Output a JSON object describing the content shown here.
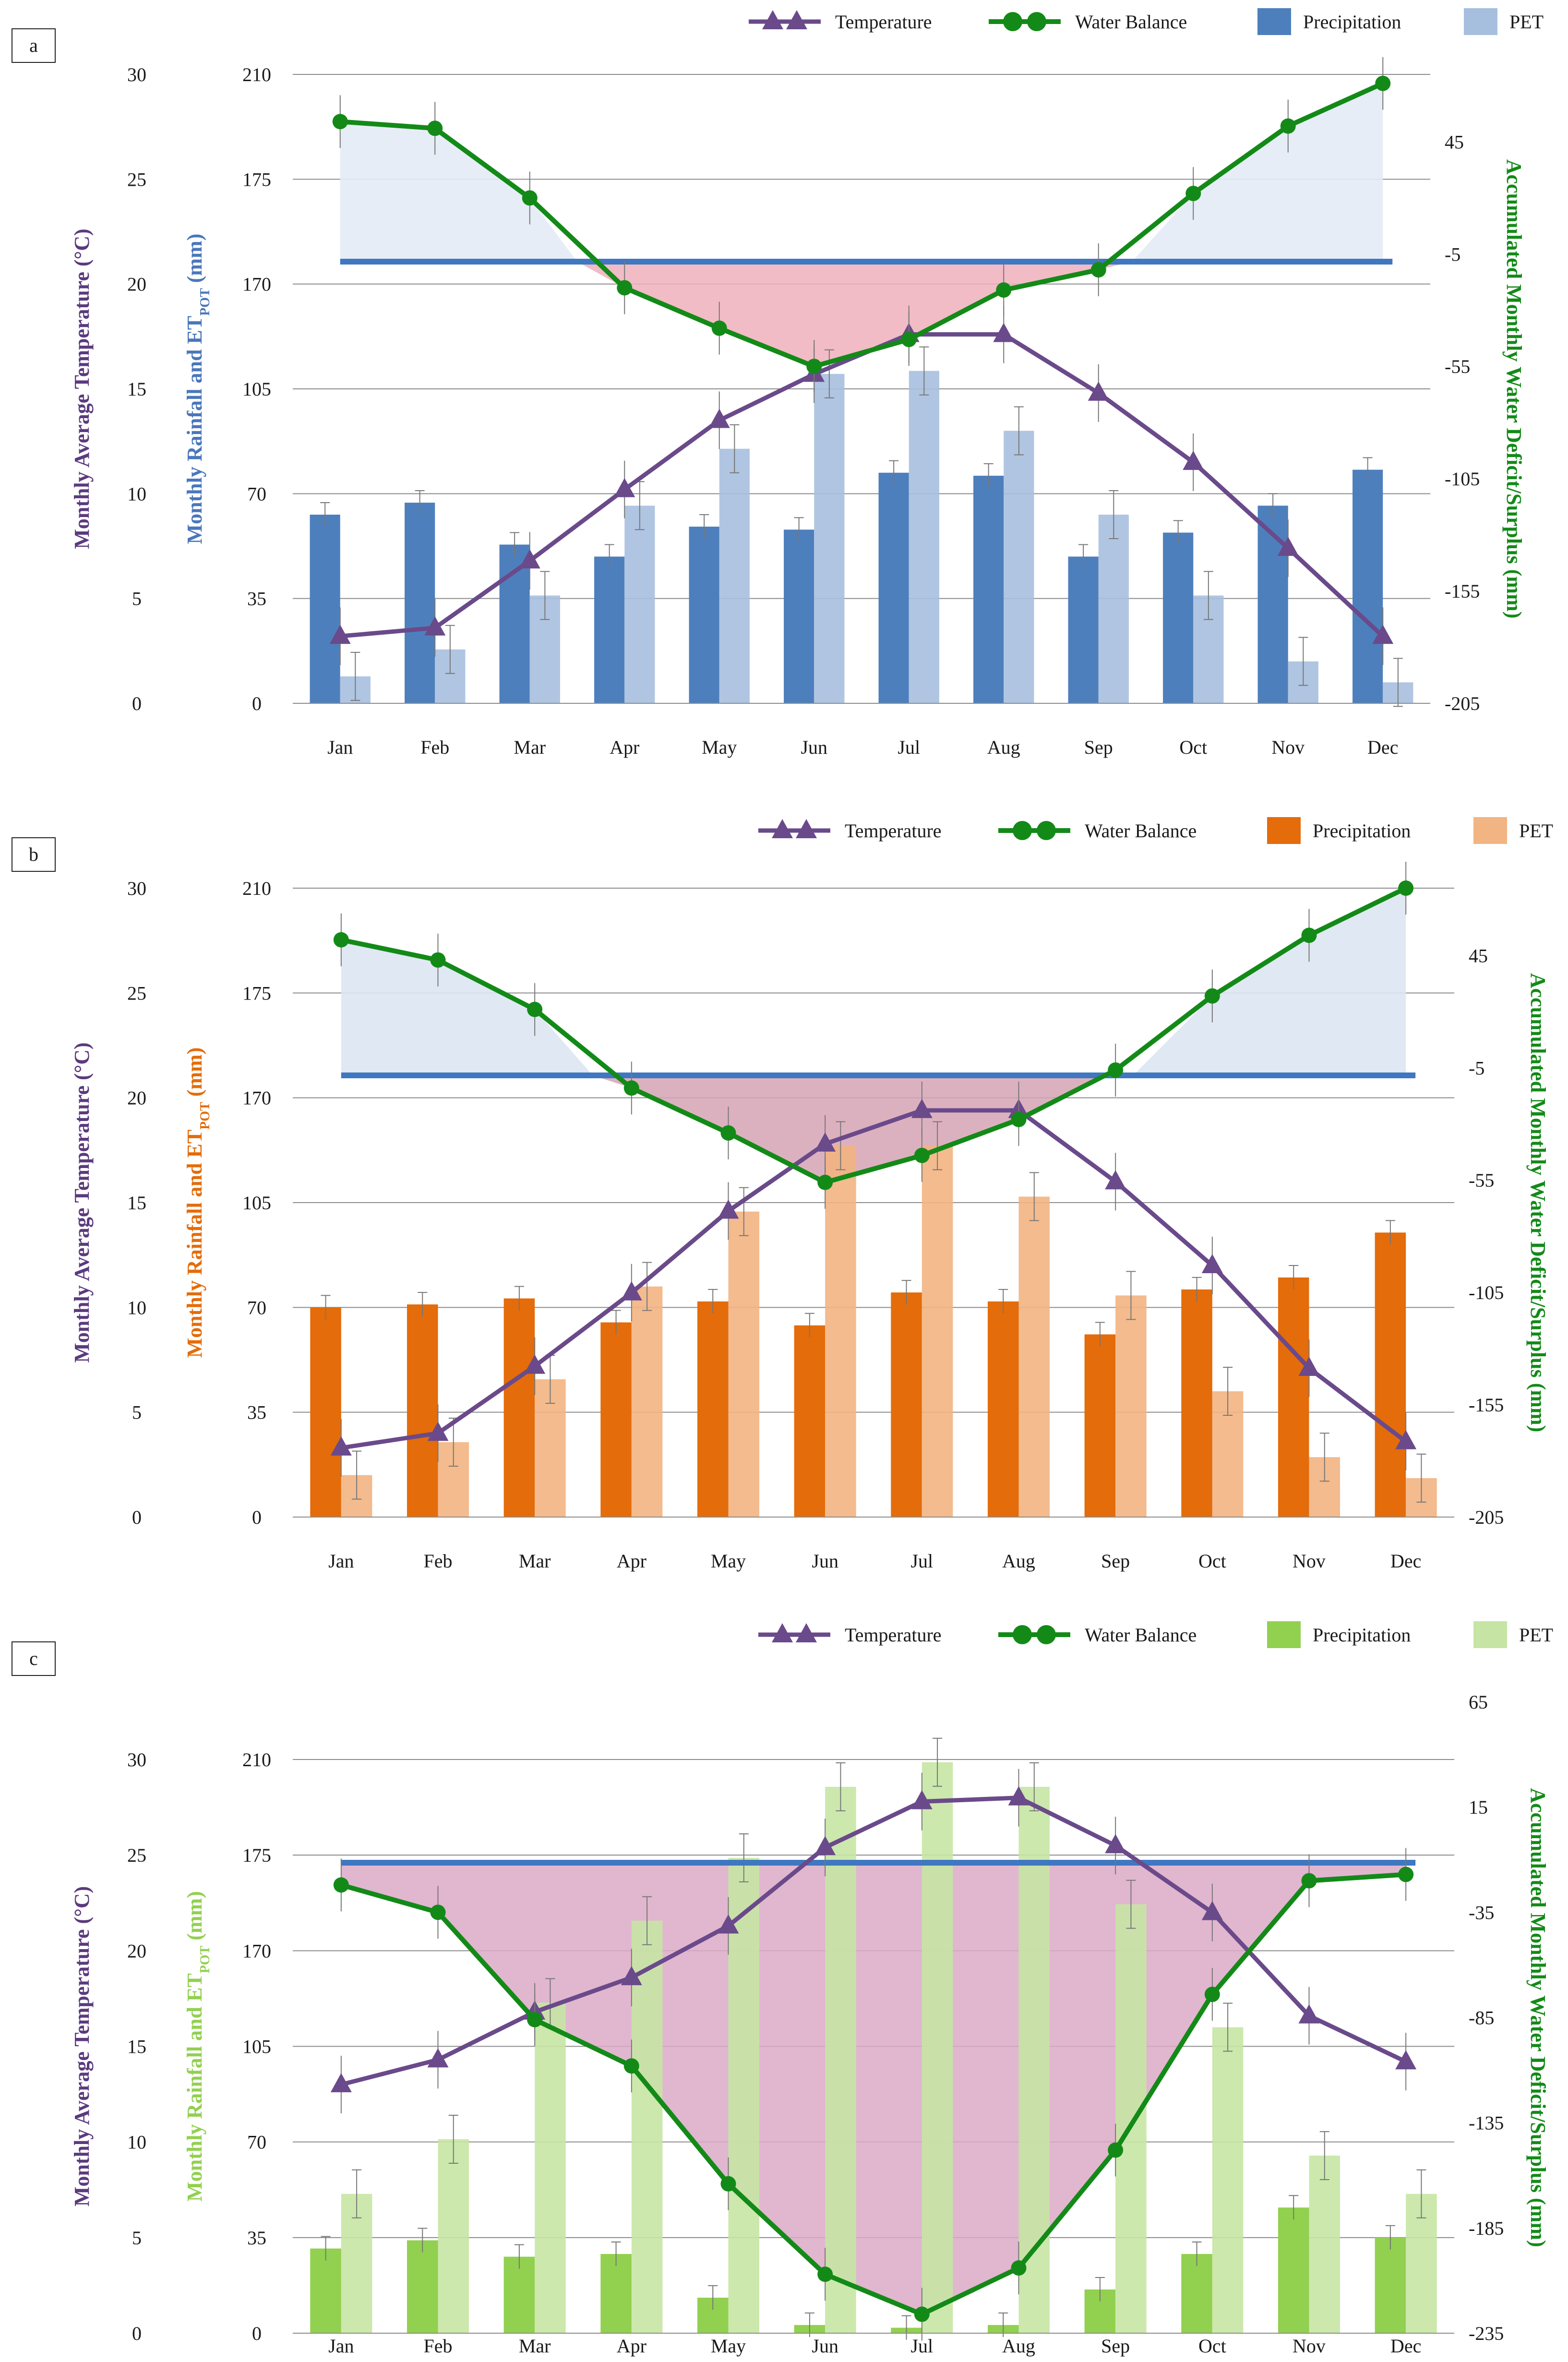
{
  "chart_data": [
    {
      "type": "bar",
      "panel_label": "a",
      "categories": [
        "Jan",
        "Feb",
        "Mar",
        "Apr",
        "May",
        "Jun",
        "Jul",
        "Aug",
        "Sep",
        "Oct",
        "Nov",
        "Dec"
      ],
      "legend": [
        "Temperature",
        "Water Balance",
        "Precipitation",
        "PET"
      ],
      "left_temp_axis": {
        "label": "Monthly Average Temperature (°C)",
        "range": [
          0,
          30
        ],
        "ticks": [
          "0",
          "5",
          "10",
          "15",
          "20",
          "25",
          "30"
        ]
      },
      "left_rain_axis": {
        "label_main": "Monthly Rainfall and ET",
        "label_sub": "POT",
        "label_unit": " (mm)",
        "range": [
          0,
          210
        ],
        "ticks": [
          "0",
          "35",
          "70",
          "105",
          "170",
          "175",
          "210"
        ]
      },
      "right_axis": {
        "label": "Accumulated Monthly Water Deficit/Surplus (mm)",
        "range": [
          -205,
          75
        ],
        "ticks": [
          "-205",
          "-155",
          "-105",
          "-55",
          "-5",
          "45"
        ]
      },
      "series": [
        {
          "name": "Precipitation",
          "axis": "rain",
          "values": [
            63,
            67,
            53,
            49,
            59,
            58,
            77,
            76,
            49,
            57,
            66,
            78
          ]
        },
        {
          "name": "PET",
          "axis": "rain",
          "values": [
            9,
            18,
            36,
            66,
            85,
            110,
            111,
            91,
            63,
            36,
            14,
            7
          ]
        },
        {
          "name": "Temperature",
          "axis": "temp",
          "values": [
            3.2,
            3.6,
            6.8,
            10.2,
            13.5,
            15.7,
            17.6,
            17.6,
            14.8,
            11.5,
            7.4,
            3.2
          ]
        },
        {
          "name": "Water Balance",
          "axis": "wb",
          "values": [
            54,
            51,
            20,
            -20,
            -38,
            -55,
            -43,
            -21,
            -12,
            22,
            52,
            71
          ]
        }
      ],
      "colors": {
        "precipitation": "#4e7fbd",
        "pet": "#a7bfde",
        "temperature": "#6a4a8a",
        "water_balance": "#138a18",
        "surplus_fill": "#e4ebf5",
        "deficit_fill": "#eeb0bb",
        "zero_line": "#3f77c0",
        "rain_label": "#4a77bb"
      }
    },
    {
      "type": "bar",
      "panel_label": "b",
      "categories": [
        "Jan",
        "Feb",
        "Mar",
        "Apr",
        "May",
        "Jun",
        "Jul",
        "Aug",
        "Sep",
        "Oct",
        "Nov",
        "Dec"
      ],
      "legend": [
        "Temperature",
        "Water Balance",
        "Precipitation",
        "PET"
      ],
      "left_temp_axis": {
        "label": "Monthly Average Temperature (°C)",
        "range": [
          0,
          30
        ],
        "ticks": [
          "0",
          "5",
          "10",
          "15",
          "20",
          "25",
          "30"
        ]
      },
      "left_rain_axis": {
        "label_main": "Monthly Rainfall and ET",
        "label_sub": "POT",
        "label_unit": " (mm)",
        "range": [
          0,
          210
        ],
        "ticks": [
          "0",
          "35",
          "70",
          "105",
          "170",
          "175",
          "210"
        ]
      },
      "right_axis": {
        "label": "Accumulated Monthly Water Deficit/Surplus (mm)",
        "range": [
          -205,
          75
        ],
        "ticks": [
          "-205",
          "-155",
          "-105",
          "-55",
          "-5",
          "45"
        ]
      },
      "series": [
        {
          "name": "Precipitation",
          "axis": "rain",
          "values": [
            70,
            71,
            73,
            65,
            72,
            64,
            75,
            72,
            61,
            76,
            80,
            95
          ]
        },
        {
          "name": "PET",
          "axis": "rain",
          "values": [
            14,
            25,
            46,
            77,
            102,
            124,
            124,
            107,
            74,
            42,
            20,
            13
          ]
        },
        {
          "name": "Temperature",
          "axis": "temp",
          "values": [
            3.3,
            4.0,
            7.2,
            10.7,
            14.6,
            17.8,
            19.4,
            19.4,
            16.0,
            12.0,
            7.1,
            3.6
          ]
        },
        {
          "name": "Water Balance",
          "axis": "wb",
          "values": [
            52,
            43,
            21,
            -14,
            -34,
            -56,
            -44,
            -28,
            -6,
            27,
            54,
            75
          ]
        }
      ],
      "colors": {
        "precipitation": "#e46c0a",
        "pet": "#f2b482",
        "temperature": "#6a4a8a",
        "water_balance": "#138a18",
        "surplus_fill": "#dde6f2",
        "deficit_fill": "#d6a3b4",
        "zero_line": "#3f77c0",
        "rain_label": "#e46c0a"
      }
    },
    {
      "type": "bar",
      "panel_label": "c",
      "categories": [
        "Jan",
        "Feb",
        "Mar",
        "Apr",
        "May",
        "Jun",
        "Jul",
        "Aug",
        "Sep",
        "Oct",
        "Nov",
        "Dec"
      ],
      "legend": [
        "Temperature",
        "Water Balance",
        "Precipitation",
        "PET"
      ],
      "left_temp_axis": {
        "label": "Monthly Average Temperature (°C)",
        "range": [
          0,
          30
        ],
        "ticks": [
          "0",
          "5",
          "10",
          "15",
          "20",
          "25",
          "30"
        ]
      },
      "left_rain_axis": {
        "label_main": "Monthly Rainfall and ET",
        "label_sub": "POT",
        "label_unit": " (mm)",
        "range": [
          0,
          210
        ],
        "ticks": [
          "0",
          "35",
          "70",
          "105",
          "170",
          "175",
          "210"
        ]
      },
      "right_axis": {
        "label": "Accumulated Monthly Water Deficit/Surplus (mm)",
        "range": [
          -235,
          65
        ],
        "ticks": [
          "-235",
          "-185",
          "-135",
          "-85",
          "-35",
          "15",
          "65"
        ]
      },
      "series": [
        {
          "name": "Precipitation",
          "axis": "rain",
          "values": [
            31,
            34,
            28,
            29,
            13,
            3,
            2,
            3,
            16,
            29,
            46,
            35
          ]
        },
        {
          "name": "PET",
          "axis": "rain",
          "values": [
            51,
            71,
            121,
            151,
            174,
            200,
            209,
            200,
            157,
            112,
            65,
            51
          ]
        },
        {
          "name": "Temperature",
          "axis": "temp",
          "values": [
            13.0,
            14.3,
            16.8,
            18.6,
            21.3,
            25.4,
            27.8,
            28.0,
            25.5,
            22.0,
            16.6,
            14.2
          ]
        },
        {
          "name": "Water Balance",
          "axis": "wb",
          "values": [
            -22,
            -35,
            -86,
            -108,
            -164,
            -207,
            -226,
            -204,
            -148,
            -74,
            -20,
            -17
          ]
        }
      ],
      "colors": {
        "precipitation": "#92d050",
        "pet": "#c6e5a4",
        "temperature": "#6a4a8a",
        "water_balance": "#138a18",
        "deficit_fill": "#dca9c7",
        "zero_line": "#3f77c0",
        "rain_label": "#92d050"
      }
    }
  ]
}
